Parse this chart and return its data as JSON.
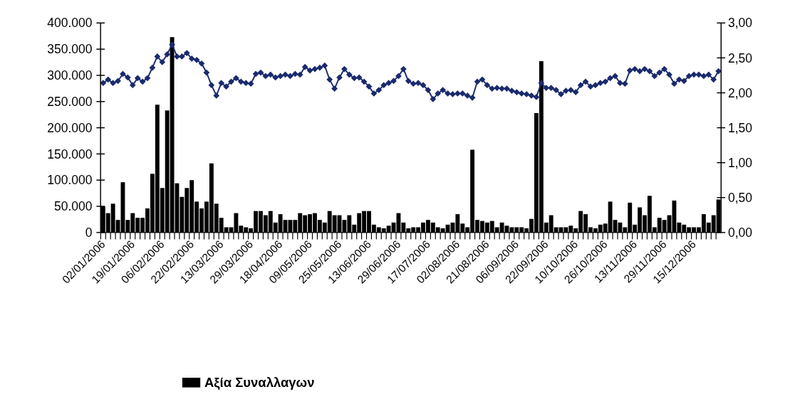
{
  "chart_data": {
    "type": "bar",
    "categories": [
      "02/01/2006",
      null,
      null,
      null,
      null,
      null,
      "19/01/2006",
      null,
      null,
      null,
      null,
      null,
      "06/02/2006",
      null,
      null,
      null,
      null,
      null,
      "22/02/2006",
      null,
      null,
      null,
      null,
      null,
      "13/03/2006",
      null,
      null,
      null,
      null,
      null,
      "29/03/2006",
      null,
      null,
      null,
      null,
      null,
      "18/04/2006",
      null,
      null,
      null,
      null,
      null,
      "09/05/2006",
      null,
      null,
      null,
      null,
      null,
      "25/05/2006",
      null,
      null,
      null,
      null,
      null,
      "13/06/2006",
      null,
      null,
      null,
      null,
      null,
      "29/06/2006",
      null,
      null,
      null,
      null,
      null,
      "17/07/2006",
      null,
      null,
      null,
      null,
      null,
      "02/08/2006",
      null,
      null,
      null,
      null,
      null,
      "21/08/2006",
      null,
      null,
      null,
      null,
      null,
      "06/09/2006",
      null,
      null,
      null,
      null,
      null,
      "22/09/2006",
      null,
      null,
      null,
      null,
      null,
      "10/10/2006",
      null,
      null,
      null,
      null,
      null,
      "26/10/2006",
      null,
      null,
      null,
      null,
      null,
      "13/11/2006",
      null,
      null,
      null,
      null,
      null,
      "29/11/2006",
      null,
      null,
      null,
      null,
      null,
      "15/12/2006",
      null,
      null,
      null,
      null,
      null
    ],
    "series": [
      {
        "name": "Αξία Συναλλαγων",
        "color": "#000000",
        "values": [
          50000,
          37000,
          55000,
          24000,
          96000,
          24000,
          37000,
          28000,
          28000,
          46000,
          112000,
          244000,
          85000,
          233000,
          373000,
          94000,
          68000,
          85000,
          100000,
          59000,
          46000,
          59000,
          132000,
          55000,
          28000,
          10000,
          10000,
          37000,
          13000,
          10000,
          8000,
          41000,
          41000,
          33000,
          41000,
          19000,
          35000,
          24000,
          24000,
          24000,
          37000,
          33000,
          35000,
          37000,
          24000,
          19000,
          41000,
          33000,
          33000,
          24000,
          33000,
          15000,
          37000,
          41000,
          41000,
          15000,
          10000,
          8000,
          13000,
          19000,
          37000,
          19000,
          8000,
          10000,
          10000,
          19000,
          24000,
          19000,
          10000,
          8000,
          15000,
          19000,
          35000,
          17000,
          10000,
          158000,
          24000,
          22000,
          19000,
          22000,
          10000,
          19000,
          13000,
          10000,
          10000,
          10000,
          8000,
          26000,
          228000,
          327000,
          19000,
          33000,
          10000,
          10000,
          10000,
          13000,
          8000,
          41000,
          35000,
          10000,
          8000,
          15000,
          17000,
          59000,
          24000,
          19000,
          10000,
          57000,
          15000,
          48000,
          33000,
          70000,
          10000,
          28000,
          24000,
          33000,
          61000,
          19000,
          15000,
          10000,
          10000,
          10000,
          35000,
          19000,
          33000,
          63000
        ]
      },
      {
        "type": "line",
        "axis": "y2",
        "color": "#1a2a6e",
        "marker": "diamond",
        "values": [
          2.14,
          2.19,
          2.14,
          2.17,
          2.27,
          2.22,
          2.11,
          2.21,
          2.16,
          2.21,
          2.36,
          2.52,
          2.44,
          2.55,
          2.69,
          2.52,
          2.52,
          2.57,
          2.49,
          2.47,
          2.42,
          2.29,
          2.11,
          1.96,
          2.14,
          2.09,
          2.16,
          2.21,
          2.16,
          2.14,
          2.13,
          2.27,
          2.29,
          2.24,
          2.26,
          2.22,
          2.24,
          2.26,
          2.24,
          2.27,
          2.26,
          2.37,
          2.32,
          2.34,
          2.36,
          2.39,
          2.19,
          2.06,
          2.22,
          2.34,
          2.26,
          2.21,
          2.22,
          2.16,
          2.09,
          1.99,
          2.04,
          2.11,
          2.14,
          2.17,
          2.24,
          2.34,
          2.17,
          2.13,
          2.14,
          2.11,
          2.04,
          1.91,
          1.99,
          2.04,
          1.99,
          1.98,
          1.99,
          1.99,
          1.96,
          1.93,
          2.16,
          2.19,
          2.11,
          2.06,
          2.07,
          2.06,
          2.06,
          2.03,
          2.01,
          1.99,
          1.98,
          1.96,
          1.94,
          2.14,
          2.07,
          2.07,
          2.04,
          1.98,
          2.03,
          2.04,
          2.01,
          2.11,
          2.16,
          2.09,
          2.11,
          2.14,
          2.16,
          2.21,
          2.24,
          2.14,
          2.13,
          2.32,
          2.34,
          2.31,
          2.34,
          2.31,
          2.24,
          2.29,
          2.34,
          2.26,
          2.13,
          2.19,
          2.17,
          2.24,
          2.26,
          2.26,
          2.24,
          2.26,
          2.19,
          2.31
        ]
      }
    ],
    "ylim": [
      0,
      400000
    ],
    "yticks": [
      {
        "value": 0,
        "label": "0"
      },
      {
        "value": 50000,
        "label": "50.000"
      },
      {
        "value": 100000,
        "label": "100.000"
      },
      {
        "value": 150000,
        "label": "150.000"
      },
      {
        "value": 200000,
        "label": "200.000"
      },
      {
        "value": 250000,
        "label": "250.000"
      },
      {
        "value": 300000,
        "label": "300.000"
      },
      {
        "value": 350000,
        "label": "350.000"
      },
      {
        "value": 400000,
        "label": "400.000"
      }
    ],
    "y2lim": [
      0,
      3
    ],
    "y2ticks": [
      {
        "value": 0,
        "label": "0,00"
      },
      {
        "value": 0.5,
        "label": "0,50"
      },
      {
        "value": 1,
        "label": "1,00"
      },
      {
        "value": 1.5,
        "label": "1,50"
      },
      {
        "value": 2,
        "label": "2,00"
      },
      {
        "value": 2.5,
        "label": "2,50"
      },
      {
        "value": 3,
        "label": "3,00"
      }
    ],
    "legend": "bottom",
    "grid": false
  }
}
